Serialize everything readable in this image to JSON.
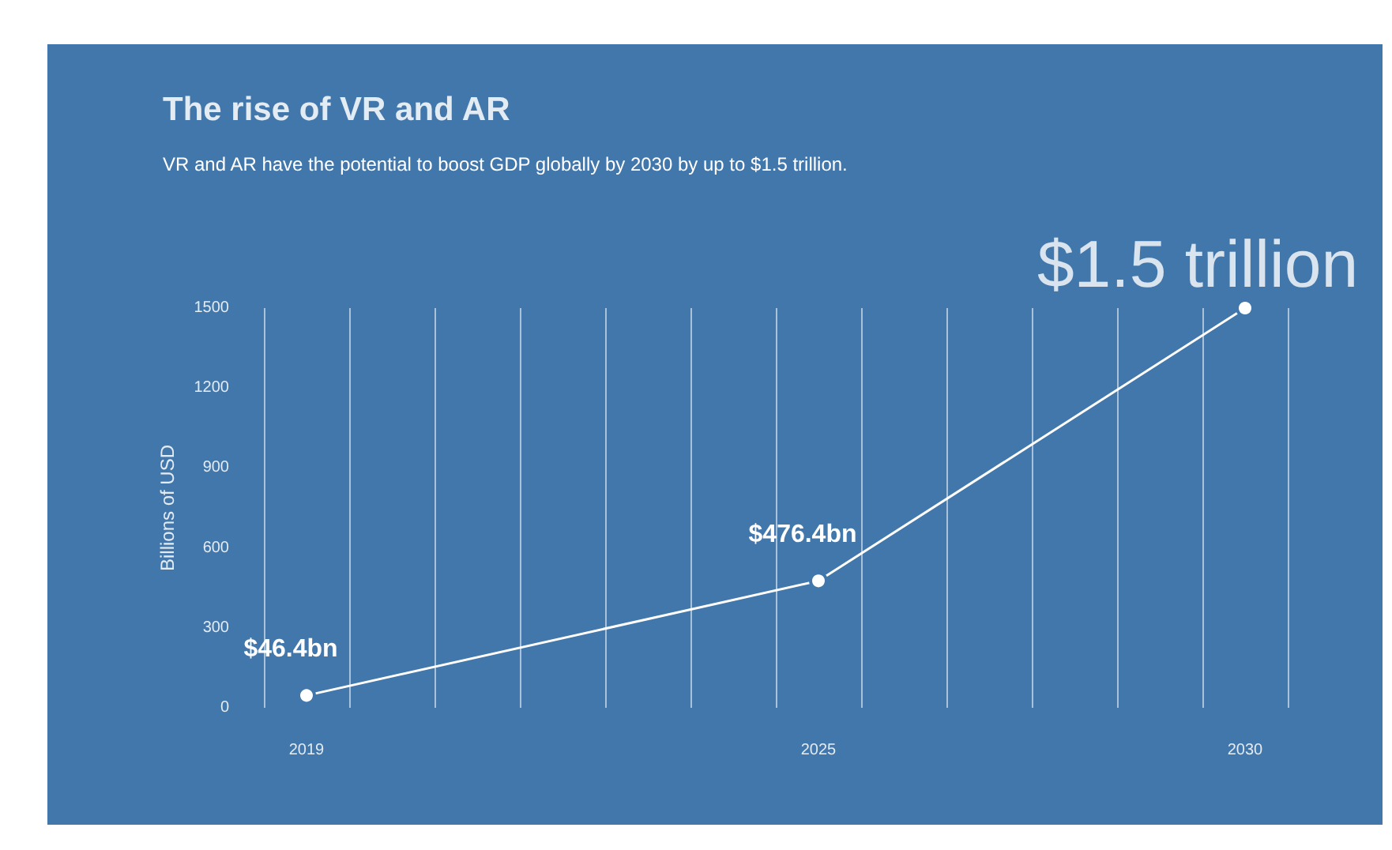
{
  "chart_data": {
    "type": "line",
    "title": "The rise of VR and AR",
    "subtitle": "VR and AR have the potential to boost GDP globally by 2030 by up to $1.5 trillion.",
    "ylabel": "Billions of USD",
    "x": [
      2019,
      2025,
      2030
    ],
    "series": [
      {
        "color": "#ffffff",
        "values": [
          46.4,
          476.4,
          1500
        ],
        "value_labels": [
          "$46.4bn",
          "$476.4bn",
          null
        ]
      }
    ],
    "annotations": [
      {
        "text": "$1.5 trillion",
        "x": 2030,
        "y": 1500
      }
    ],
    "xlim": [
      2018.5,
      2030.5
    ],
    "xticks": [
      {
        "value": 2018.5,
        "label": null
      },
      2019,
      {
        "value": 2019.5,
        "label": null
      },
      {
        "value": 2020.5,
        "label": null
      },
      {
        "value": 2021.5,
        "label": null
      },
      {
        "value": 2022.5,
        "label": null
      },
      {
        "value": 2023.5,
        "label": null
      },
      {
        "value": 2024.5,
        "label": null
      },
      2025,
      {
        "value": 2025.5,
        "label": null
      },
      {
        "value": 2026.5,
        "label": null
      },
      {
        "value": 2027.5,
        "label": null
      },
      {
        "value": 2028.5,
        "label": null
      },
      {
        "value": 2029.5,
        "label": null
      },
      2030,
      {
        "value": 2030.5,
        "label": null
      }
    ],
    "ylim": [
      0,
      1500
    ],
    "yticks": [
      0,
      300,
      600,
      900,
      1200,
      1500
    ],
    "grid": "x",
    "marker": "circle",
    "line_style": "solid"
  }
}
